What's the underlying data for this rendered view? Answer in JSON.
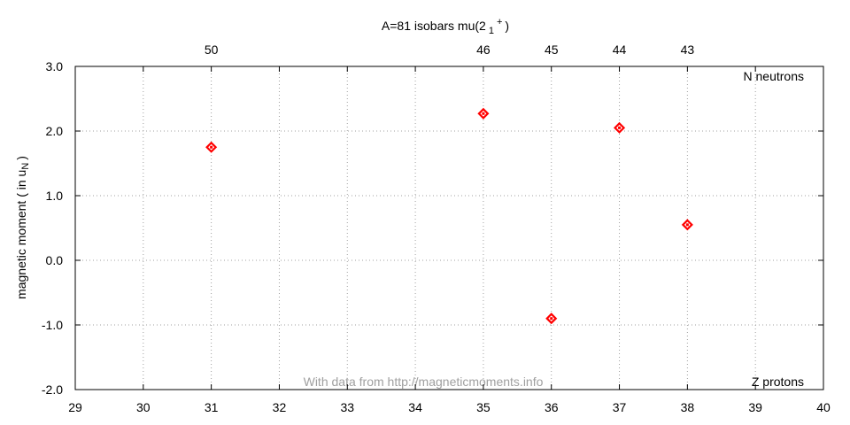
{
  "chart_data": {
    "type": "scatter",
    "title_main": "A=81 isobars mu(2",
    "title_sub": "1",
    "title_sup": "+",
    "title_close": ")",
    "ylabel_main": "magnetic moment ( in u",
    "ylabel_sub": "N",
    "ylabel_close": ")",
    "xlabel": "Z protons",
    "x2label": "N neutrons",
    "watermark": "With data from http://magneticmoments.info",
    "xlim": [
      29,
      40
    ],
    "ylim": [
      -2.0,
      3.0
    ],
    "xticks": [
      "29",
      "30",
      "31",
      "32",
      "33",
      "34",
      "35",
      "36",
      "37",
      "38",
      "39",
      "40"
    ],
    "yticks": [
      "-2.0",
      "-1.0",
      "0.0",
      "1.0",
      "2.0",
      "3.0"
    ],
    "x": [
      31,
      35,
      36,
      37,
      38
    ],
    "y": [
      1.75,
      2.27,
      -0.9,
      2.05,
      0.55
    ],
    "top_labels": [
      "50",
      "46",
      "45",
      "44",
      "43"
    ],
    "marker_color": "#ff0000",
    "marker_shape": "diamond",
    "grid": true
  }
}
